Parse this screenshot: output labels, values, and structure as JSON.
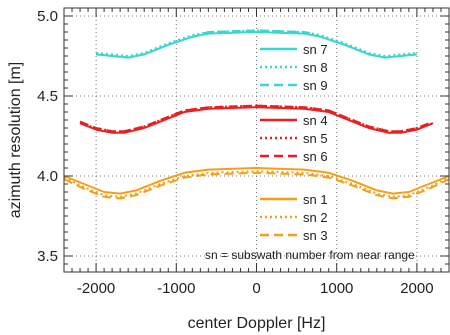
{
  "chart_data": {
    "type": "line",
    "title": "",
    "xlabel": "center Doppler [Hz]",
    "ylabel": "azimuth resolution [m]",
    "xlim": [
      -2400,
      2400
    ],
    "ylim": [
      3.4,
      5.05
    ],
    "xticks": [
      -2000,
      -1000,
      0,
      1000,
      2000
    ],
    "xtick_labels": [
      "-2000",
      "-1000",
      "0",
      "1000",
      "2000"
    ],
    "yticks": [
      3.5,
      4.0,
      4.5,
      5.0
    ],
    "ytick_labels": [
      "3.5",
      "4.0",
      "4.5",
      "5.0"
    ],
    "grid": "dotted",
    "legend_placement": "right, grouped by curve set",
    "annotation": "sn = subswath number from near range",
    "series": [
      {
        "name": "sn 1",
        "group": 0,
        "style": "solid",
        "color": "#f5a014",
        "x": [
          -2400,
          -2150,
          -1900,
          -1700,
          -1500,
          -1200,
          -900,
          -600,
          0,
          600,
          900,
          1200,
          1500,
          1700,
          1900,
          2150,
          2400
        ],
        "y": [
          4.0,
          3.95,
          3.9,
          3.89,
          3.91,
          3.97,
          4.02,
          4.04,
          4.05,
          4.04,
          4.02,
          3.97,
          3.91,
          3.89,
          3.9,
          3.95,
          4.0
        ]
      },
      {
        "name": "sn 2",
        "group": 0,
        "style": "dotted",
        "color": "#f5a014",
        "x": [
          -2400,
          -2150,
          -1900,
          -1700,
          -1500,
          -1200,
          -900,
          -600,
          0,
          600,
          900,
          1200,
          1500,
          1700,
          1900,
          2150,
          2400
        ],
        "y": [
          3.99,
          3.93,
          3.88,
          3.87,
          3.89,
          3.95,
          4.0,
          4.02,
          4.03,
          4.02,
          4.0,
          3.95,
          3.89,
          3.87,
          3.88,
          3.93,
          3.99
        ]
      },
      {
        "name": "sn 3",
        "group": 0,
        "style": "dashed",
        "color": "#f5a014",
        "x": [
          -2400,
          -2150,
          -1900,
          -1700,
          -1500,
          -1200,
          -900,
          -600,
          0,
          600,
          900,
          1200,
          1500,
          1700,
          1900,
          2150,
          2400
        ],
        "y": [
          3.98,
          3.92,
          3.87,
          3.86,
          3.88,
          3.94,
          3.99,
          4.01,
          4.02,
          4.01,
          3.99,
          3.94,
          3.88,
          3.86,
          3.87,
          3.92,
          3.98
        ]
      },
      {
        "name": "sn 4",
        "group": 1,
        "style": "solid",
        "color": "#e82020",
        "x": [
          -2200,
          -2000,
          -1800,
          -1650,
          -1400,
          -1100,
          -900,
          -600,
          0,
          600,
          900,
          1100,
          1400,
          1650,
          1800,
          2000,
          2200
        ],
        "y": [
          4.33,
          4.29,
          4.27,
          4.27,
          4.3,
          4.36,
          4.4,
          4.42,
          4.43,
          4.42,
          4.4,
          4.36,
          4.3,
          4.27,
          4.27,
          4.29,
          4.33
        ]
      },
      {
        "name": "sn 5",
        "group": 1,
        "style": "dotted",
        "color": "#e82020",
        "x": [
          -2200,
          -2000,
          -1800,
          -1650,
          -1400,
          -1100,
          -900,
          -600,
          0,
          600,
          900,
          1100,
          1400,
          1650,
          1800,
          2000,
          2200
        ],
        "y": [
          4.33,
          4.3,
          4.28,
          4.28,
          4.31,
          4.37,
          4.41,
          4.43,
          4.44,
          4.43,
          4.41,
          4.37,
          4.31,
          4.28,
          4.28,
          4.3,
          4.33
        ]
      },
      {
        "name": "sn 6",
        "group": 1,
        "style": "dashed",
        "color": "#e82020",
        "x": [
          -2200,
          -2000,
          -1800,
          -1650,
          -1400,
          -1100,
          -900,
          -600,
          0,
          600,
          900,
          1100,
          1400,
          1650,
          1800,
          2000,
          2200
        ],
        "y": [
          4.34,
          4.3,
          4.28,
          4.28,
          4.31,
          4.37,
          4.41,
          4.43,
          4.44,
          4.43,
          4.41,
          4.37,
          4.31,
          4.28,
          4.28,
          4.3,
          4.34
        ]
      },
      {
        "name": "sn 7",
        "group": 2,
        "style": "solid",
        "color": "#3cd6d0",
        "x": [
          -2000,
          -1800,
          -1600,
          -1400,
          -1100,
          -800,
          -600,
          0,
          600,
          800,
          1100,
          1400,
          1600,
          1800,
          2000
        ],
        "y": [
          4.76,
          4.75,
          4.74,
          4.76,
          4.82,
          4.87,
          4.89,
          4.9,
          4.89,
          4.87,
          4.82,
          4.76,
          4.74,
          4.75,
          4.76
        ]
      },
      {
        "name": "sn 8",
        "group": 2,
        "style": "dotted",
        "color": "#3cd6d0",
        "x": [
          -2000,
          -1800,
          -1600,
          -1400,
          -1100,
          -800,
          -600,
          0,
          600,
          800,
          1100,
          1400,
          1600,
          1800,
          2000
        ],
        "y": [
          4.77,
          4.76,
          4.75,
          4.77,
          4.83,
          4.88,
          4.9,
          4.91,
          4.9,
          4.88,
          4.83,
          4.77,
          4.75,
          4.76,
          4.77
        ]
      },
      {
        "name": "sn 9",
        "group": 2,
        "style": "dashed",
        "color": "#3cd6d0",
        "x": [
          -2000,
          -1800,
          -1600,
          -1400,
          -1100,
          -800,
          -600,
          0,
          600,
          800,
          1100,
          1400,
          1600,
          1800,
          2000
        ],
        "y": [
          4.76,
          4.75,
          4.74,
          4.76,
          4.82,
          4.87,
          4.9,
          4.91,
          4.9,
          4.87,
          4.82,
          4.76,
          4.74,
          4.75,
          4.76
        ]
      }
    ]
  }
}
